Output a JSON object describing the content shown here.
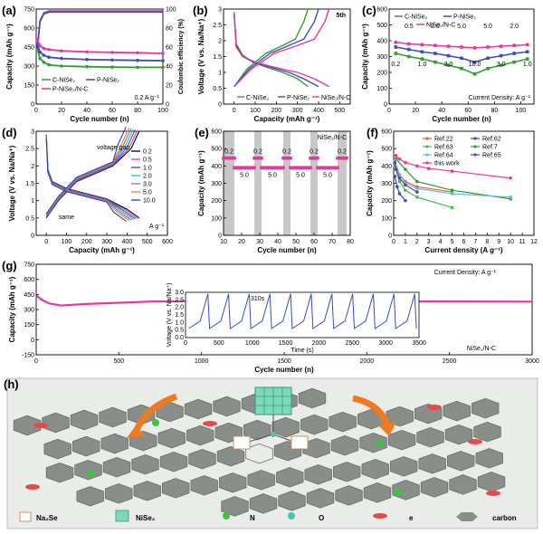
{
  "chart_data": [
    {
      "panel": "(a)",
      "type": "line",
      "xlabel": "Cycle number (n)",
      "ylabel": "Capacity (mAh g⁻¹)",
      "y2label": "Coulombic efficiency (%)",
      "xlim": [
        0,
        100
      ],
      "ylim": [
        0,
        750
      ],
      "y2lim": [
        0,
        100
      ],
      "xticks": [
        0,
        20,
        40,
        60,
        80,
        100
      ],
      "yticks": [
        0,
        150,
        300,
        450,
        600,
        750
      ],
      "y2ticks": [
        0,
        20,
        40,
        60,
        80,
        100
      ],
      "annotation": "0.2 A g⁻¹",
      "series": [
        {
          "name": "C-NiSe₂",
          "color": "#2ca02c",
          "x": [
            1,
            3,
            6,
            10,
            20,
            40,
            60,
            80,
            100
          ],
          "values": [
            430,
            360,
            330,
            310,
            300,
            295,
            292,
            290,
            290
          ]
        },
        {
          "name": "P-NiSe₂",
          "color": "#3b4cc0",
          "x": [
            1,
            3,
            6,
            10,
            20,
            40,
            60,
            80,
            100
          ],
          "values": [
            470,
            410,
            385,
            370,
            360,
            352,
            348,
            345,
            342
          ]
        },
        {
          "name": "P-NiSe₂/N-C",
          "color": "#e8389a",
          "x": [
            1,
            3,
            6,
            10,
            20,
            40,
            60,
            80,
            100
          ],
          "values": [
            510,
            460,
            440,
            430,
            420,
            412,
            408,
            405,
            400
          ]
        }
      ],
      "efficiency": {
        "x": [
          1,
          3,
          6,
          10,
          100
        ],
        "values": [
          60,
          88,
          96,
          98,
          98
        ],
        "colors": [
          "#2ca02c",
          "#e8389a",
          "#3b4cc0"
        ]
      }
    },
    {
      "panel": "(b)",
      "type": "line",
      "xlabel": "Capacity (mAh g⁻¹)",
      "ylabel": "Voltage (V vs. Na/Na⁺)",
      "xlim": [
        -50,
        550
      ],
      "ylim": [
        0.0,
        3.0
      ],
      "xticks": [
        0,
        100,
        200,
        300,
        400,
        500
      ],
      "yticks": [
        0.0,
        0.5,
        1.0,
        1.5,
        2.0,
        2.5,
        3.0
      ],
      "annotation": "5th",
      "series": [
        {
          "name": "C-NiSe₂",
          "color": "#2ca02c",
          "discharge": {
            "x": [
              0,
              10,
              40,
              90,
              160,
              230,
              300,
              350
            ],
            "y": [
              2.9,
              1.9,
              1.55,
              1.32,
              1.15,
              1.0,
              0.8,
              0.55
            ]
          },
          "charge": {
            "x": [
              0,
              60,
              150,
              230,
              290,
              330,
              350
            ],
            "y": [
              0.55,
              1.1,
              1.6,
              1.85,
              2.05,
              2.6,
              3.0
            ]
          }
        },
        {
          "name": "P-NiSe₂",
          "color": "#3b4cc0",
          "discharge": {
            "x": [
              0,
              10,
              40,
              100,
              180,
              260,
              330,
              400
            ],
            "y": [
              2.9,
              1.85,
              1.5,
              1.3,
              1.15,
              1.0,
              0.8,
              0.55
            ]
          },
          "charge": {
            "x": [
              0,
              70,
              170,
              260,
              330,
              380,
              400
            ],
            "y": [
              0.55,
              1.1,
              1.6,
              1.85,
              2.05,
              2.6,
              3.0
            ]
          }
        },
        {
          "name": "NiSe₂/N-C",
          "color": "#e8389a",
          "discharge": {
            "x": [
              0,
              10,
              40,
              110,
              200,
              300,
              380,
              450
            ],
            "y": [
              2.9,
              1.8,
              1.5,
              1.3,
              1.15,
              1.0,
              0.8,
              0.55
            ]
          },
          "charge": {
            "x": [
              0,
              80,
              190,
              300,
              380,
              430,
              450
            ],
            "y": [
              0.55,
              1.1,
              1.6,
              1.85,
              2.05,
              2.6,
              3.0
            ]
          }
        }
      ]
    },
    {
      "panel": "(c)",
      "type": "line",
      "xlabel": "Cycle number (n)",
      "ylabel": "Capacity (mAh g⁻¹)",
      "xlim": [
        0,
        110
      ],
      "ylim": [
        0,
        600
      ],
      "xticks": [
        0,
        20,
        40,
        60,
        80,
        100
      ],
      "yticks": [
        0,
        100,
        200,
        300,
        400,
        500,
        600
      ],
      "annotation": "Current Density: A g⁻¹",
      "rate_labels": [
        "0.2",
        "0.5",
        "1.0",
        "2.0",
        "3.0",
        "5.0",
        "10.0",
        "5.0",
        "3.0",
        "2.0",
        "1.0"
      ],
      "series": [
        {
          "name": "C-NiSe₂",
          "color": "#2ca02c",
          "x": [
            5,
            15,
            25,
            35,
            45,
            55,
            65,
            75,
            85,
            95,
            105
          ],
          "values": [
            320,
            300,
            285,
            265,
            245,
            225,
            190,
            225,
            245,
            265,
            285
          ]
        },
        {
          "name": "P-NiSe₂",
          "color": "#3b4cc0",
          "x": [
            5,
            15,
            25,
            35,
            45,
            55,
            65,
            75,
            85,
            95,
            105
          ],
          "values": [
            360,
            345,
            330,
            320,
            305,
            290,
            265,
            290,
            305,
            320,
            330
          ]
        },
        {
          "name": "NiSe₂/N-C",
          "color": "#e8389a",
          "x": [
            5,
            15,
            25,
            35,
            45,
            55,
            65,
            75,
            85,
            95,
            105
          ],
          "values": [
            390,
            380,
            375,
            370,
            365,
            360,
            355,
            360,
            365,
            370,
            375
          ]
        }
      ]
    },
    {
      "panel": "(d)",
      "type": "line",
      "xlabel": "Capacity (mAh g⁻¹)",
      "ylabel": "Voltage (V vs. Na/Na⁺)",
      "xlim": [
        -50,
        600
      ],
      "ylim": [
        0.0,
        3.0
      ],
      "xticks": [
        0,
        100,
        200,
        300,
        400,
        500,
        600
      ],
      "yticks": [
        0.0,
        0.5,
        1.0,
        1.5,
        2.0,
        2.5,
        3.0
      ],
      "annotations": [
        "voltage gap",
        "same"
      ],
      "legend_unit": "A g⁻¹",
      "series": [
        {
          "name": "0.2",
          "color": "#000000",
          "cap": 460
        },
        {
          "name": "0.5",
          "color": "#e8389a",
          "cap": 450
        },
        {
          "name": "1.0",
          "color": "#3b4cc0",
          "cap": 440
        },
        {
          "name": "2.0",
          "color": "#17becf",
          "cap": 430
        },
        {
          "name": "3.0",
          "color": "#9467bd",
          "cap": 420
        },
        {
          "name": "5.0",
          "color": "#ff7f0e",
          "cap": 410
        },
        {
          "name": "10.0",
          "color": "#1f3fbf",
          "cap": 395
        }
      ]
    },
    {
      "panel": "(e)",
      "type": "line",
      "xlabel": "Cycle number (n)",
      "ylabel": "Capacity (mAh g⁻¹)",
      "xlim": [
        10,
        80
      ],
      "ylim": [
        0,
        600
      ],
      "xticks": [
        10,
        20,
        30,
        40,
        50,
        60,
        70,
        80
      ],
      "yticks": [
        0,
        100,
        200,
        300,
        400,
        500,
        600
      ],
      "annotation": "NiSe₂/N-C",
      "series": [
        {
          "name": "NiSe₂/N-C",
          "color": "#e8389a",
          "segments": [
            {
              "x": [
                10,
                16
              ],
              "value": 445,
              "rate": "0.2"
            },
            {
              "x": [
                16,
                27
              ],
              "value": 390,
              "rate": "5.0"
            },
            {
              "x": [
                27,
                31
              ],
              "value": 445,
              "rate": "0.2"
            },
            {
              "x": [
                31,
                43
              ],
              "value": 390,
              "rate": "5.0"
            },
            {
              "x": [
                43,
                47
              ],
              "value": 445,
              "rate": "0.2"
            },
            {
              "x": [
                47,
                58
              ],
              "value": 390,
              "rate": "5.0"
            },
            {
              "x": [
                58,
                62
              ],
              "value": 445,
              "rate": "0.2"
            },
            {
              "x": [
                62,
                73
              ],
              "value": 390,
              "rate": "5.0"
            },
            {
              "x": [
                73,
                78
              ],
              "value": 445,
              "rate": "0.2"
            }
          ]
        }
      ]
    },
    {
      "panel": "(f)",
      "type": "line",
      "xlabel": "Current density (A g⁻¹)",
      "ylabel": "Capacity (mAh g⁻¹)",
      "xlim": [
        0,
        12
      ],
      "ylim": [
        0,
        600
      ],
      "xticks": [
        0,
        1,
        2,
        3,
        4,
        5,
        6,
        7,
        8,
        9,
        10,
        11,
        12
      ],
      "yticks": [
        0,
        100,
        200,
        300,
        400,
        500,
        600
      ],
      "series": [
        {
          "name": "Ref.22",
          "color": "#e8602c",
          "x": [
            0.1,
            0.5,
            1,
            2,
            5
          ],
          "values": [
            410,
            350,
            310,
            280,
            250
          ]
        },
        {
          "name": "Ref.62",
          "color": "#3b4cc0",
          "x": [
            0.1,
            0.3,
            0.5,
            1
          ],
          "values": [
            340,
            280,
            240,
            200
          ]
        },
        {
          "name": "Ref.63",
          "color": "#4db84d",
          "x": [
            0.1,
            0.5,
            1,
            2,
            5
          ],
          "values": [
            400,
            310,
            260,
            220,
            160
          ]
        },
        {
          "name": "Ref.7",
          "color": "#2ca02c",
          "x": [
            0.2,
            1,
            2,
            5,
            10
          ],
          "values": [
            440,
            380,
            310,
            260,
            210
          ]
        },
        {
          "name": "Ref.64",
          "color": "#5bc0de",
          "x": [
            0.1,
            0.5,
            1,
            2,
            5,
            10
          ],
          "values": [
            430,
            350,
            300,
            270,
            240,
            220
          ]
        },
        {
          "name": "Ref.65",
          "color": "#6a3d9a",
          "x": [
            0.1,
            0.2,
            0.5,
            1,
            2
          ],
          "values": [
            420,
            380,
            330,
            290,
            250
          ]
        },
        {
          "name": "this work",
          "color": "#e8389a",
          "x": [
            0.2,
            0.5,
            1,
            2,
            3,
            5,
            10
          ],
          "values": [
            460,
            440,
            420,
            400,
            385,
            370,
            330
          ]
        }
      ]
    },
    {
      "panel": "(g)",
      "type": "line",
      "xlabel": "Cycle number (n)",
      "ylabel": "Capacity (mAh g⁻¹)",
      "xlim": [
        0,
        3000
      ],
      "ylim": [
        -150,
        750
      ],
      "xticks": [
        0,
        500,
        1000,
        1500,
        2000,
        2500,
        3000
      ],
      "yticks": [
        -150,
        0,
        150,
        300,
        450,
        600,
        750
      ],
      "annotation": "Current Density: A g⁻¹",
      "annotation2": "NiSe₂/N-C",
      "series": [
        {
          "name": "NiSe₂/N-C",
          "color": "#e8389a",
          "x": [
            1,
            30,
            80,
            150,
            300,
            700,
            1000,
            1500,
            2000,
            2500,
            3000
          ],
          "values": [
            440,
            400,
            360,
            340,
            355,
            380,
            385,
            385,
            382,
            380,
            378
          ]
        }
      ],
      "inset": {
        "xlabel": "Time (s)",
        "ylabel": "Voltage (V vs. Na/Na⁺)",
        "xlim": [
          0,
          3500
        ],
        "ylim": [
          0.0,
          3.0
        ],
        "xticks": [
          0,
          500,
          1000,
          1500,
          2000,
          2500,
          3000,
          3500
        ],
        "yticks": [
          0.0,
          0.5,
          1.0,
          1.5,
          2.0,
          2.5,
          3.0
        ],
        "annotation": "310s",
        "period_s": 310,
        "cycles": 11,
        "color": "#3b4cc0"
      }
    }
  ],
  "schematic": {
    "label": "(h)",
    "legend": [
      "Na₂Se",
      "NiSe₂",
      "N",
      "O",
      "e",
      "carbon"
    ]
  }
}
